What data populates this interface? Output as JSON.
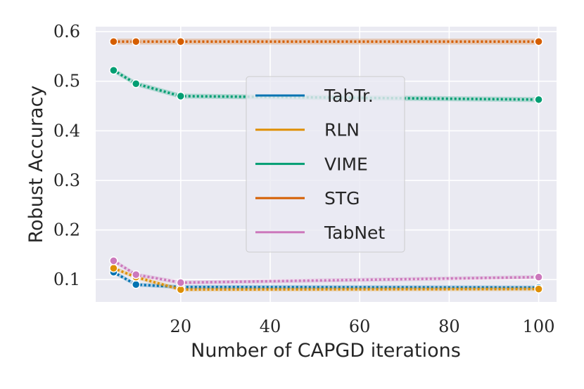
{
  "chart_data": {
    "type": "line",
    "title": "",
    "xlabel": "Number of CAPGD iterations",
    "ylabel": "Robust Accuracy",
    "xlim": [
      1,
      104
    ],
    "ylim": [
      0.055,
      0.61
    ],
    "xticks": [
      20,
      40,
      60,
      80,
      100
    ],
    "xtick_labels": [
      "20",
      "40",
      "60",
      "80",
      "100"
    ],
    "yticks": [
      0.1,
      0.2,
      0.3,
      0.4,
      0.5,
      0.6
    ],
    "ytick_labels": [
      "0.1",
      "0.2",
      "0.3",
      "0.4",
      "0.5",
      "0.6"
    ],
    "grid": true,
    "legend_position": "center",
    "x": [
      5,
      10,
      20,
      100
    ],
    "series": [
      {
        "name": "TabTr.",
        "color": "#0173b2",
        "values": [
          0.115,
          0.09,
          0.085,
          0.084
        ],
        "band": 0.004
      },
      {
        "name": "RLN",
        "color": "#de8f05",
        "values": [
          0.123,
          0.105,
          0.08,
          0.081
        ],
        "band": 0.004
      },
      {
        "name": "VIME",
        "color": "#029e73",
        "values": [
          0.522,
          0.495,
          0.47,
          0.463
        ],
        "band": 0.005
      },
      {
        "name": "STG",
        "color": "#d55e00",
        "values": [
          0.58,
          0.58,
          0.58,
          0.58
        ],
        "band": 0.006
      },
      {
        "name": "TabNet",
        "color": "#cc78bc",
        "values": [
          0.138,
          0.11,
          0.094,
          0.105
        ],
        "band": 0.004
      }
    ]
  }
}
